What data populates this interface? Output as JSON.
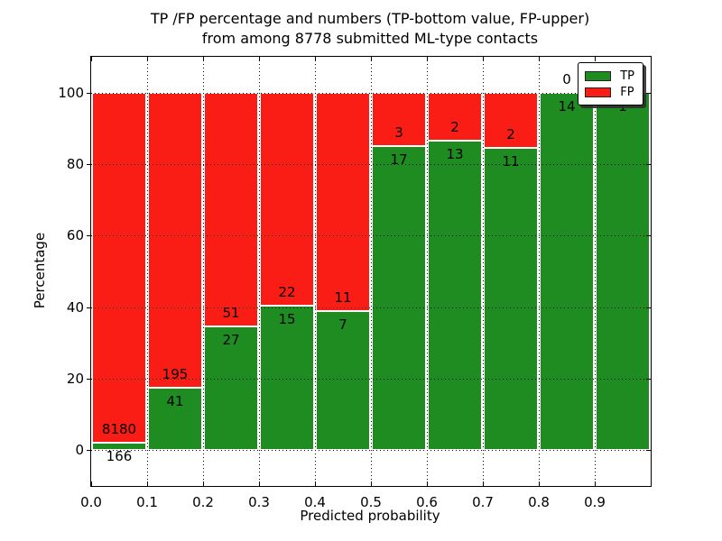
{
  "title": {
    "line1": "TP /FP percentage and numbers (TP-bottom value, FP-upper)",
    "line2": "from among 8778 submitted ML-type contacts"
  },
  "axes": {
    "xlabel": "Predicted probability",
    "ylabel": "Percentage",
    "x_tick_labels": [
      "0.0",
      "0.1",
      "0.2",
      "0.3",
      "0.4",
      "0.5",
      "0.6",
      "0.7",
      "0.8",
      "0.9"
    ],
    "y_tick_labels": [
      "0",
      "20",
      "40",
      "60",
      "80",
      "100"
    ]
  },
  "legend": {
    "entries": [
      {
        "label": "TP",
        "color": "#1f8c22"
      },
      {
        "label": "FP",
        "color": "#fa1d15"
      }
    ]
  },
  "chart_data": {
    "type": "bar",
    "stacked": true,
    "normalized_to_percent": true,
    "title": "TP /FP percentage and numbers (TP-bottom value, FP-upper) from among 8778 submitted ML-type contacts",
    "xlabel": "Predicted probability",
    "ylabel": "Percentage",
    "total_contacts": 8778,
    "bin_edges": [
      0.0,
      0.1,
      0.2,
      0.3,
      0.4,
      0.5,
      0.6,
      0.7,
      0.8,
      0.9,
      1.0
    ],
    "categories": [
      "0.0-0.1",
      "0.1-0.2",
      "0.2-0.3",
      "0.3-0.4",
      "0.4-0.5",
      "0.5-0.6",
      "0.6-0.7",
      "0.7-0.8",
      "0.8-0.9",
      "0.9-1.0"
    ],
    "series": [
      {
        "name": "TP",
        "color": "#1f8c22",
        "counts": [
          166,
          41,
          27,
          15,
          7,
          17,
          13,
          11,
          14,
          1
        ]
      },
      {
        "name": "FP",
        "color": "#fa1d15",
        "counts": [
          8180,
          195,
          51,
          22,
          11,
          3,
          2,
          2,
          0,
          0
        ]
      }
    ],
    "tp_percent_of_bin": [
      1.99,
      17.37,
      34.62,
      40.54,
      38.89,
      85.0,
      86.67,
      84.62,
      100.0,
      100.0
    ],
    "xlim": [
      0.0,
      1.0
    ],
    "ylim": [
      -10,
      110
    ],
    "x_ticks": [
      0.0,
      0.1,
      0.2,
      0.3,
      0.4,
      0.5,
      0.6,
      0.7,
      0.8,
      0.9
    ],
    "y_ticks": [
      0,
      20,
      40,
      60,
      80,
      100
    ],
    "grid": "dotted, drawn above bars",
    "legend_position": "upper right"
  }
}
